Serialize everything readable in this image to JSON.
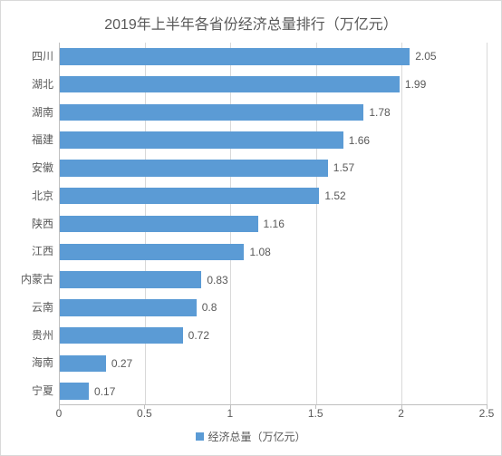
{
  "chart": {
    "type": "bar",
    "orientation": "horizontal",
    "title": "2019年上半年各省份经济总量排行（万亿元）",
    "title_fontsize": 16,
    "title_color": "#595959",
    "background_color": "#ffffff",
    "border_color": "#d9d9d9",
    "grid_color": "#d9d9d9",
    "axis_color": "#bfbfbf",
    "text_color": "#595959",
    "label_fontsize": 12,
    "bar_color": "#5b9bd5",
    "bar_height_ratio": 0.6,
    "xlim": [
      0,
      2.5
    ],
    "xtick_step": 0.5,
    "xticks": [
      "0",
      "0.5",
      "1",
      "1.5",
      "2",
      "2.5"
    ],
    "categories": [
      "四川",
      "湖北",
      "湖南",
      "福建",
      "安徽",
      "北京",
      "陕西",
      "江西",
      "内蒙古",
      "云南",
      "贵州",
      "海南",
      "宁夏"
    ],
    "values": [
      2.05,
      1.99,
      1.78,
      1.66,
      1.57,
      1.52,
      1.16,
      1.08,
      0.83,
      0.8,
      0.72,
      0.27,
      0.17
    ],
    "value_labels": [
      "2.05",
      "1.99",
      "1.78",
      "1.66",
      "1.57",
      "1.52",
      "1.16",
      "1.08",
      "0.83",
      "0.8",
      "0.72",
      "0.27",
      "0.17"
    ],
    "legend": {
      "label": "经济总量（万亿元）",
      "position": "bottom",
      "swatch_color": "#5b9bd5"
    }
  }
}
